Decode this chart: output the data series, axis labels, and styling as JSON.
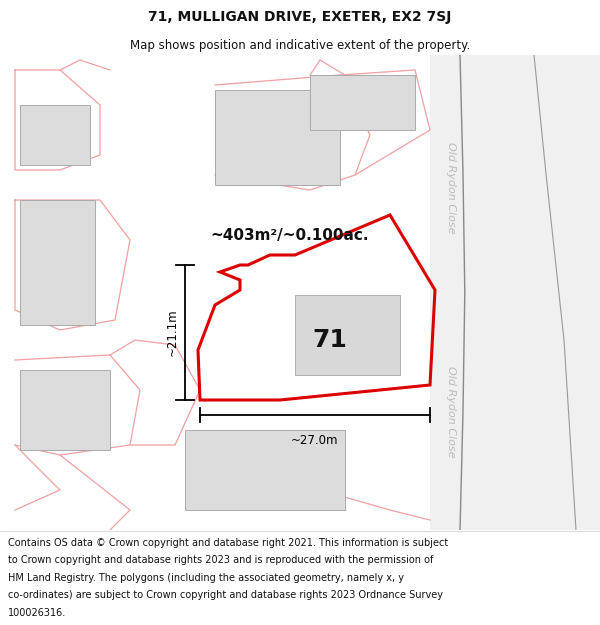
{
  "title_line1": "71, MULLIGAN DRIVE, EXETER, EX2 7SJ",
  "title_line2": "Map shows position and indicative extent of the property.",
  "footer_lines": [
    "Contains OS data © Crown copyright and database right 2021. This information is subject to Crown copyright and database rights 2023 and is reproduced with the permission of",
    "HM Land Registry. The polygons (including the associated geometry, namely x, y",
    "co-ordinates) are subject to Crown copyright and database rights 2023 Ordnance Survey",
    "100026316."
  ],
  "area_label": "~403m²/~0.100ac.",
  "number_label": "71",
  "dim_width": "~27.0m",
  "dim_height": "~21.1m",
  "road_label": "Old Rydon Close",
  "background_color": "#ffffff",
  "plot_color": "#dd0000",
  "building_color": "#dcdcdc",
  "building_outline": "#aaaaaa",
  "pink_color": "#f0a0a0",
  "road_bg_color": "#eeeeee",
  "road_line_color": "#aaaaaa",
  "road_text_color": "#bbbbbb",
  "text_color": "#111111",
  "footer_text_color": "#111111",
  "dim_color": "#000000",
  "title_fontsize": 10,
  "subtitle_fontsize": 8.5,
  "area_fontsize": 11,
  "number_fontsize": 18,
  "dim_fontsize": 8.5,
  "road_fontsize": 8,
  "footer_fontsize": 7
}
